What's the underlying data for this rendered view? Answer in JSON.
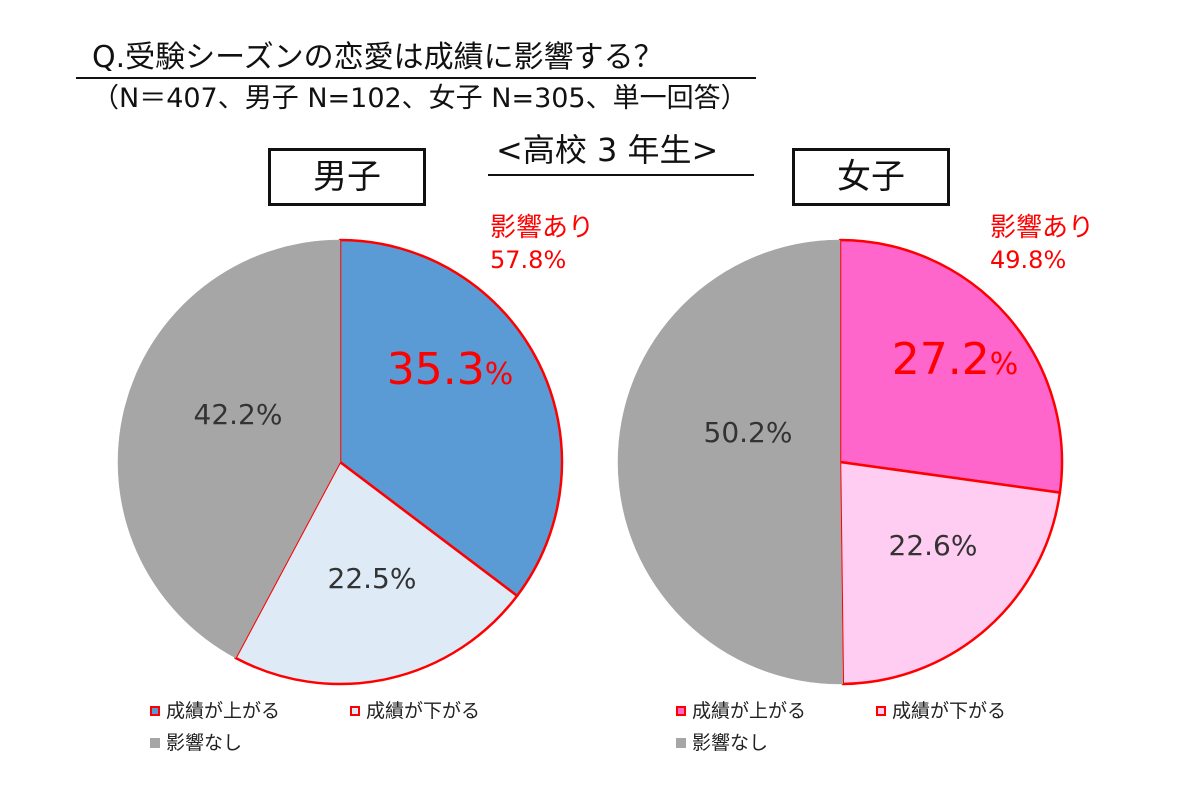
{
  "header": {
    "title": "Q.受験シーズンの恋愛は成績に影響する？",
    "subtitle": "（N＝407、男子 N=102、女子 N=305、単一回答）",
    "grade_label": "<高校 3 年生>"
  },
  "colors": {
    "male_up": "#5b9bd5",
    "male_down": "#deebf7",
    "female_up": "#ff66cc",
    "female_down": "#ffccf2",
    "none": "#a6a6a6",
    "highlight_red": "#ff0000"
  },
  "chart_data": [
    {
      "type": "pie",
      "group_label": "男子",
      "influence_label": "影響あり",
      "influence_value": "57.8%",
      "slices": [
        {
          "name": "成績が上がる",
          "value": 35.3,
          "label": "35.3",
          "unit": "%"
        },
        {
          "name": "成績が下がる",
          "value": 22.5,
          "label": "22.5%"
        },
        {
          "name": "影響なし",
          "value": 42.2,
          "label": "42.2%"
        }
      ]
    },
    {
      "type": "pie",
      "group_label": "女子",
      "influence_label": "影響あり",
      "influence_value": "49.8%",
      "slices": [
        {
          "name": "成績が上がる",
          "value": 27.2,
          "label": "27.2",
          "unit": "%"
        },
        {
          "name": "成績が下がる",
          "value": 22.6,
          "label": "22.6%"
        },
        {
          "name": "影響なし",
          "value": 50.2,
          "label": "50.2%"
        }
      ]
    }
  ]
}
